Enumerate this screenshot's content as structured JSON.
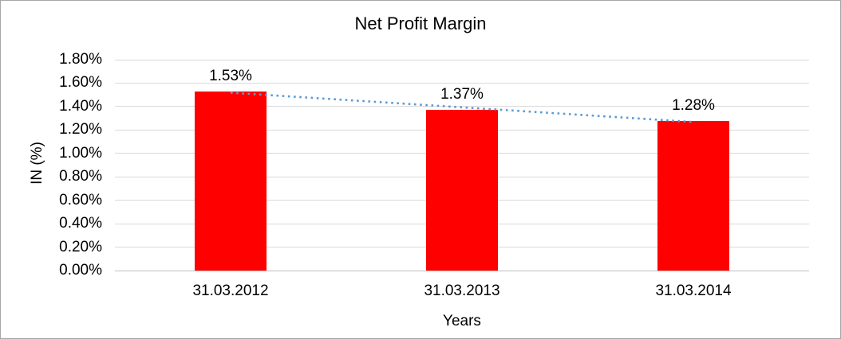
{
  "chart_data": {
    "type": "bar",
    "title": "Net Profit Margin",
    "xlabel": "Years",
    "ylabel": "IN (%)",
    "categories": [
      "31.03.2012",
      "31.03.2013",
      "31.03.2014"
    ],
    "values": [
      1.53,
      1.37,
      1.28
    ],
    "data_labels": [
      "1.53%",
      "1.37%",
      "1.28%"
    ],
    "ylim": [
      0,
      1.8
    ],
    "ytick_step": 0.2,
    "yticks": [
      {
        "value": 0.0,
        "label": "0.00%"
      },
      {
        "value": 0.2,
        "label": "0.20%"
      },
      {
        "value": 0.4,
        "label": "0.40%"
      },
      {
        "value": 0.6,
        "label": "0.60%"
      },
      {
        "value": 0.8,
        "label": "0.80%"
      },
      {
        "value": 1.0,
        "label": "1.00%"
      },
      {
        "value": 1.2,
        "label": "1.20%"
      },
      {
        "value": 1.4,
        "label": "1.40%"
      },
      {
        "value": 1.6,
        "label": "1.60%"
      },
      {
        "value": 1.8,
        "label": "1.80%"
      }
    ],
    "grid": "horizontal",
    "legend": "none",
    "bar_color": "#FF0000",
    "trendline": {
      "type": "linear",
      "style": "dotted",
      "color": "#5B9BD5",
      "from_value": 1.5183,
      "to_value": 1.2683
    }
  },
  "colors": {
    "gridline": "#D9D9D9",
    "axis_line": "#BFBFBF",
    "text": "#000000",
    "background": "#FFFFFF",
    "frame_border": "#A6A6A6"
  }
}
